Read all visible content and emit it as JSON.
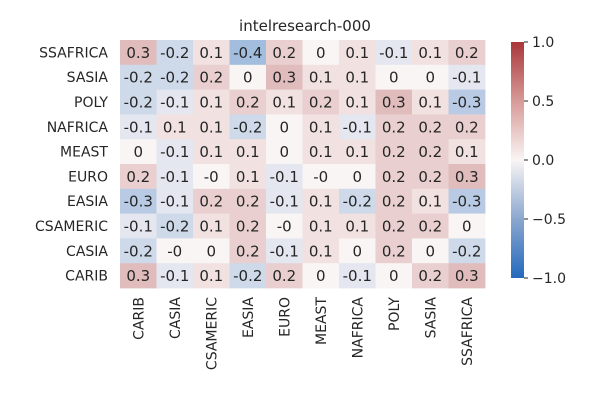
{
  "chart_data": {
    "type": "heatmap",
    "title": "intelresearch-000",
    "x_categories": [
      "CARIB",
      "CASIA",
      "CSAMERIC",
      "EASIA",
      "EURO",
      "MEAST",
      "NAFRICA",
      "POLY",
      "SASIA",
      "SSAFRICA"
    ],
    "y_categories": [
      "SSAFRICA",
      "SASIA",
      "POLY",
      "NAFRICA",
      "MEAST",
      "EURO",
      "EASIA",
      "CSAMERIC",
      "CASIA",
      "CARIB"
    ],
    "values": [
      [
        0.3,
        -0.2,
        0.1,
        -0.4,
        0.2,
        0.0,
        0.1,
        -0.1,
        0.1,
        0.2
      ],
      [
        -0.2,
        -0.2,
        0.2,
        0.0,
        0.3,
        0.1,
        0.1,
        0.0,
        0.0,
        -0.1
      ],
      [
        -0.2,
        -0.1,
        0.1,
        0.2,
        0.1,
        0.2,
        0.1,
        0.3,
        0.1,
        -0.3
      ],
      [
        -0.1,
        0.1,
        0.1,
        -0.2,
        0.0,
        0.1,
        -0.1,
        0.2,
        0.2,
        0.2
      ],
      [
        0.0,
        -0.1,
        0.1,
        0.1,
        0.0,
        0.1,
        0.1,
        0.2,
        0.2,
        0.1
      ],
      [
        0.2,
        -0.1,
        0.0,
        0.1,
        -0.1,
        0.0,
        0.0,
        0.2,
        0.2,
        0.3
      ],
      [
        -0.3,
        -0.1,
        0.2,
        0.2,
        -0.1,
        0.1,
        -0.2,
        0.2,
        0.1,
        -0.3
      ],
      [
        -0.1,
        -0.2,
        0.1,
        0.2,
        0.0,
        0.1,
        0.1,
        0.2,
        0.2,
        0.0
      ],
      [
        -0.2,
        0.0,
        0.0,
        0.2,
        -0.1,
        0.1,
        0.0,
        0.2,
        0.0,
        -0.2
      ],
      [
        0.3,
        -0.1,
        0.1,
        -0.2,
        0.2,
        0.0,
        -0.1,
        0.0,
        0.2,
        0.3
      ]
    ],
    "cell_labels": [
      [
        "0.3",
        "-0.2",
        "0.1",
        "-0.4",
        "0.2",
        "0",
        "0.1",
        "-0.1",
        "0.1",
        "0.2"
      ],
      [
        "-0.2",
        "-0.2",
        "0.2",
        "0",
        "0.3",
        "0.1",
        "0.1",
        "0",
        "0",
        "-0.1"
      ],
      [
        "-0.2",
        "-0.1",
        "0.1",
        "0.2",
        "0.1",
        "0.2",
        "0.1",
        "0.3",
        "0.1",
        "-0.3"
      ],
      [
        "-0.1",
        "0.1",
        "0.1",
        "-0.2",
        "0",
        "0.1",
        "-0.1",
        "0.2",
        "0.2",
        "0.2"
      ],
      [
        "0",
        "-0.1",
        "0.1",
        "0.1",
        "0",
        "0.1",
        "0.1",
        "0.2",
        "0.2",
        "0.1"
      ],
      [
        "0.2",
        "-0.1",
        "-0",
        "0.1",
        "-0.1",
        "-0",
        "0",
        "0.2",
        "0.2",
        "0.3"
      ],
      [
        "-0.3",
        "-0.1",
        "0.2",
        "0.2",
        "-0.1",
        "0.1",
        "-0.2",
        "0.2",
        "0.1",
        "-0.3"
      ],
      [
        "-0.1",
        "-0.2",
        "0.1",
        "0.2",
        "-0",
        "0.1",
        "0.1",
        "0.2",
        "0.2",
        "0"
      ],
      [
        "-0.2",
        "-0",
        "0",
        "0.2",
        "-0.1",
        "0.1",
        "0",
        "0.2",
        "0",
        "-0.2"
      ],
      [
        "0.3",
        "-0.1",
        "0.1",
        "-0.2",
        "0.2",
        "0",
        "-0.1",
        "0",
        "0.2",
        "0.3"
      ]
    ],
    "vmin": -1.0,
    "vmax": 1.0,
    "colormap": "vlag",
    "colorbar_ticks": [
      "1.0",
      "0.5",
      "0.0",
      "−0.5",
      "−1.0"
    ],
    "colorbar_tick_values": [
      1.0,
      0.5,
      0.0,
      -0.5,
      -1.0
    ],
    "colors": {
      "low": "#2369bd",
      "mid": "#f9f5f4",
      "high": "#a9373b",
      "text_dark": "#262626",
      "text_light": "#ffffff"
    }
  }
}
